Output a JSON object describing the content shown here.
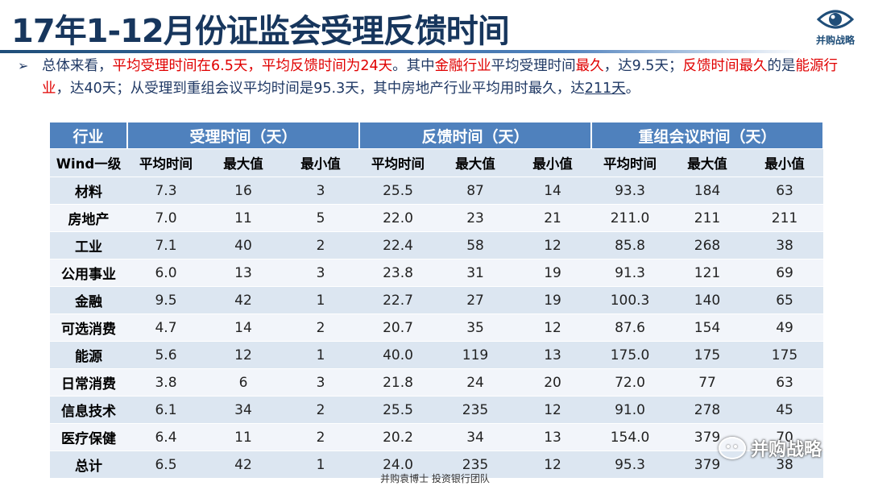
{
  "slide": {
    "title": "17年1-12月份证监会受理反馈时间",
    "logo_text": "并购战略",
    "summary": {
      "p1": "总体来看，",
      "p2": "平均受理时间在6.5天，平均反馈时间为24天",
      "p3": "。其中",
      "p4": "金融行业",
      "p5": "平均受理时间",
      "p6": "最久",
      "p7": "，达9.5天；",
      "p8": "反馈时间最久",
      "p9": "的是",
      "p10": "能源行业",
      "p11": "，达40天；从受理到重组会议平均时间是95.3天，其中房地产行业平均用时最久，达",
      "p12": "211天",
      "p13": "。"
    },
    "table": {
      "group_headers": [
        "行业",
        "受理时间（天）",
        "反馈时间（天）",
        "重组会议时间（天）"
      ],
      "sub_headers": [
        "Wind一级",
        "平均时间",
        "最大值",
        "最小值",
        "平均时间",
        "最大值",
        "最小值",
        "平均时间",
        "最大值",
        "最小值"
      ],
      "rows": [
        [
          "材料",
          "7.3",
          "16",
          "3",
          "25.5",
          "87",
          "14",
          "93.3",
          "184",
          "63"
        ],
        [
          "房地产",
          "7.0",
          "11",
          "5",
          "22.0",
          "23",
          "21",
          "211.0",
          "211",
          "211"
        ],
        [
          "工业",
          "7.1",
          "40",
          "2",
          "22.4",
          "58",
          "12",
          "85.8",
          "268",
          "38"
        ],
        [
          "公用事业",
          "6.0",
          "13",
          "3",
          "23.8",
          "31",
          "19",
          "91.3",
          "121",
          "69"
        ],
        [
          "金融",
          "9.5",
          "42",
          "1",
          "22.7",
          "27",
          "19",
          "100.3",
          "140",
          "65"
        ],
        [
          "可选消费",
          "4.7",
          "14",
          "2",
          "20.7",
          "35",
          "12",
          "87.6",
          "154",
          "49"
        ],
        [
          "能源",
          "5.6",
          "12",
          "1",
          "40.0",
          "119",
          "13",
          "175.0",
          "175",
          "175"
        ],
        [
          "日常消费",
          "3.8",
          "6",
          "3",
          "21.8",
          "24",
          "20",
          "72.0",
          "77",
          "63"
        ],
        [
          "信息技术",
          "6.1",
          "34",
          "2",
          "25.5",
          "235",
          "12",
          "91.0",
          "278",
          "45"
        ],
        [
          "医疗保健",
          "6.4",
          "11",
          "2",
          "20.2",
          "34",
          "13",
          "154.0",
          "379",
          "70"
        ],
        [
          "总计",
          "6.5",
          "42",
          "1",
          "24.0",
          "235",
          "12",
          "95.3",
          "379",
          "38"
        ]
      ]
    },
    "footer": "并购袁博士 投资银行团队",
    "watermark": "并购战略"
  }
}
